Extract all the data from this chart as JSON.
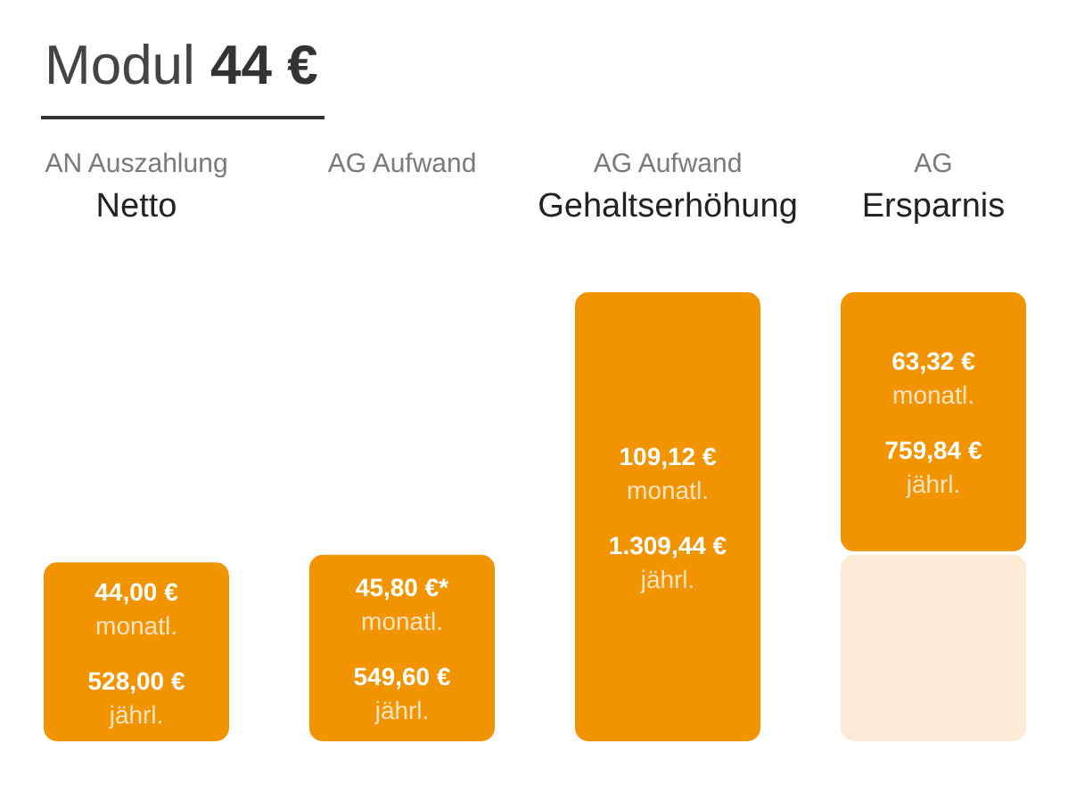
{
  "chart_data": {
    "type": "bar",
    "title": "Modul 44 €",
    "categories": [
      "AN Auszahlung\nNetto",
      "AG Aufwand",
      "AG Aufwand\nGehaltserhöhung",
      "AG\nErsparnis"
    ],
    "stacked": true,
    "tick_labels": "x",
    "series": [
      {
        "color": "#fdebd5",
        "values": [
          null,
          null,
          null,
          45.8
        ]
      },
      {
        "color": "#f29400",
        "values": [
          44.0,
          45.8,
          109.12,
          63.32
        ],
        "value_labels": [
          "44,00 €\nmonatl.\n528,00 €\njährl.",
          "45,80 €*\nmonatl.\n549,60 €\njährl.",
          "109,12 €\nmonatl.\n1.309,44 €\njährl.",
          "63,32 €\nmonatl.\n759,84 €\njährl."
        ]
      }
    ]
  }
}
